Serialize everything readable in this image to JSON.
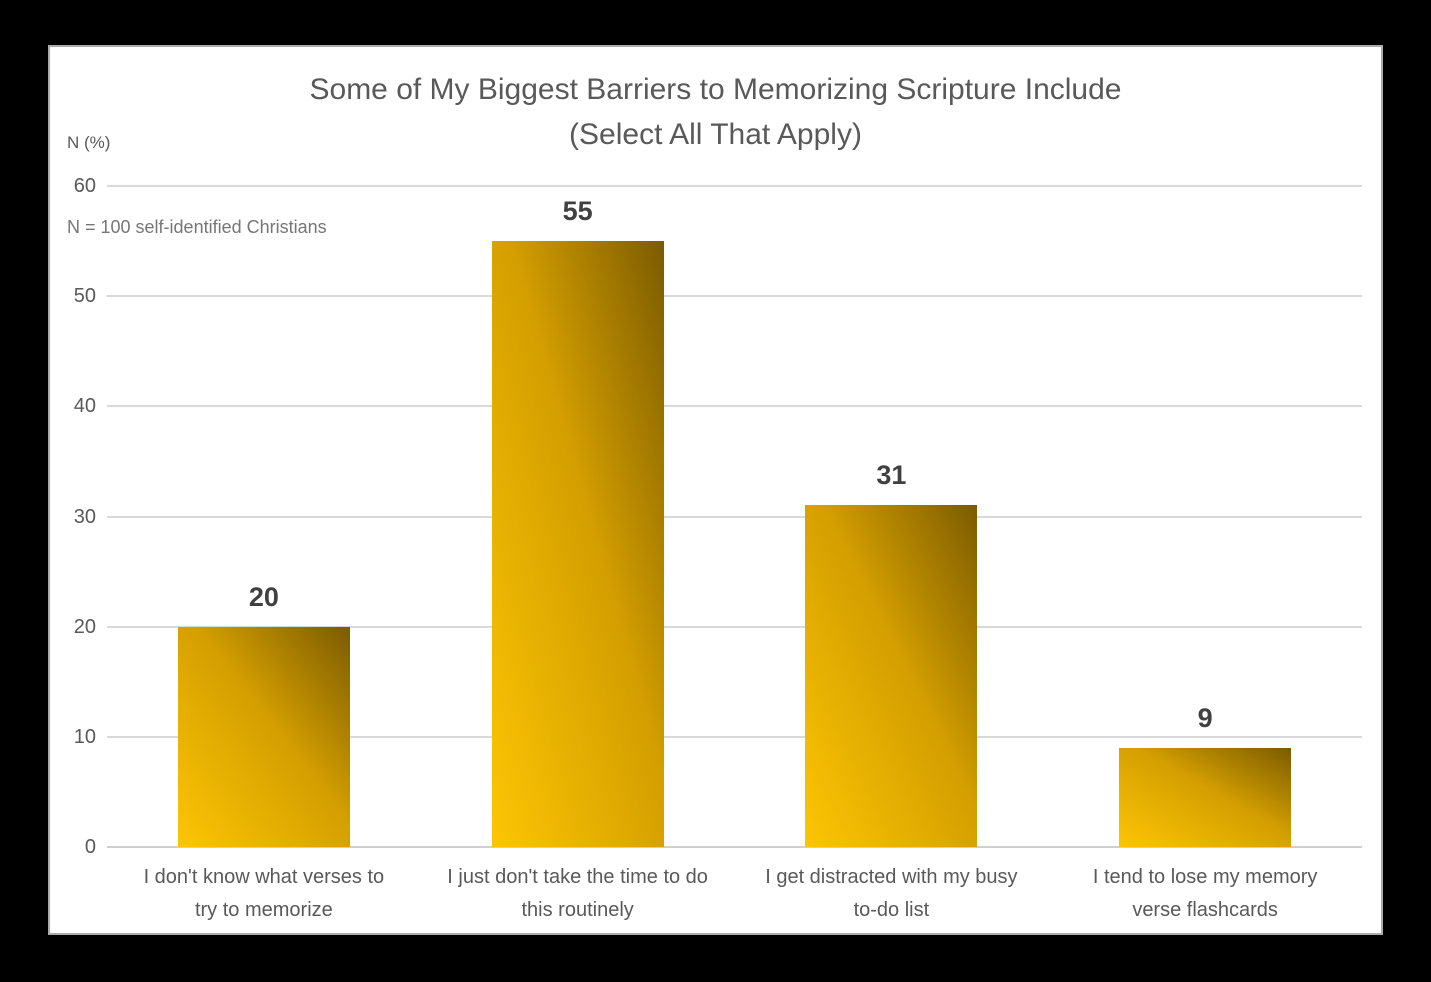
{
  "chart_data": {
    "type": "bar",
    "title": "Some of My Biggest Barriers to Memorizing Scripture Include (Select All That Apply)",
    "title_lines": [
      "Some of My Biggest Barriers to Memorizing Scripture Include",
      "(Select All That Apply)"
    ],
    "y_axis_unit": "N (%)",
    "annotation": "N = 100 self-identified Christians",
    "categories": [
      "I don't know what verses to\ntry to memorize",
      "I just don't take the time to do\nthis routinely",
      "I get distracted with my busy\nto-do list",
      "I tend to lose my memory\nverse flashcards"
    ],
    "values": [
      20,
      55,
      31,
      9
    ],
    "xlabel": "",
    "ylabel": "N (%)",
    "ylim": [
      0,
      60
    ],
    "yticks": [
      0,
      10,
      20,
      30,
      40,
      50,
      60
    ],
    "grid": true,
    "legend": "none",
    "colors": {
      "bar_gradient_start": "#FDC504",
      "bar_gradient_mid": "#D49F00",
      "bar_gradient_end": "#7B5B00",
      "gridline": "#D9D9D9",
      "title_text": "#595959",
      "axis_text": "#595959",
      "annotation_text": "#767676",
      "data_label_text": "#404040",
      "panel_background": "#FFFFFF",
      "panel_border": "#ABABAB",
      "page_background": "#000000"
    }
  }
}
